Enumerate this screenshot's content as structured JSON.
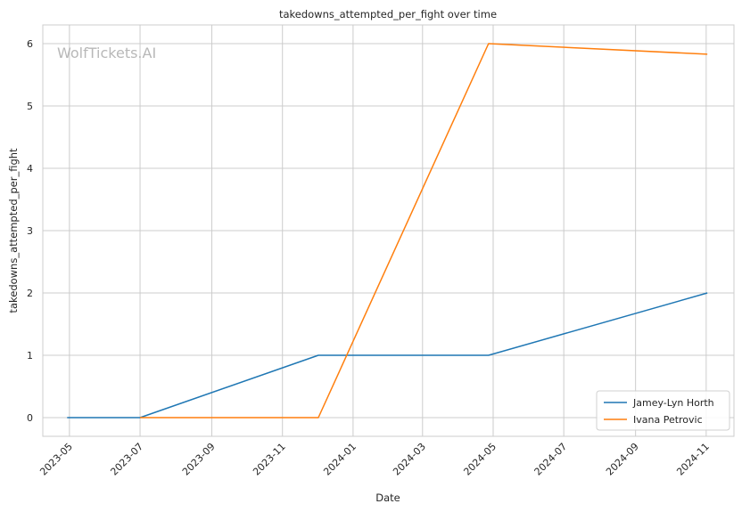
{
  "chart_data": {
    "type": "line",
    "title": "takedowns_attempted_per_fight over time",
    "xlabel": "Date",
    "ylabel": "takedowns_attempted_per_fight",
    "watermark": "WolfTickets.AI",
    "x_ticks": [
      "2023-05",
      "2023-07",
      "2023-09",
      "2023-11",
      "2024-01",
      "2024-03",
      "2024-05",
      "2024-07",
      "2024-09",
      "2024-11"
    ],
    "y_ticks": [
      "0",
      "1",
      "2",
      "3",
      "4",
      "5",
      "6"
    ],
    "xlim": [
      "2023-04-08",
      "2024-11-25"
    ],
    "ylim": [
      -0.3,
      6.3
    ],
    "grid": true,
    "legend_position": "bottom-right",
    "series": [
      {
        "name": "Jamey-Lyn Horth",
        "color": "#1f77b4",
        "x": [
          "2023-04-29",
          "2023-07-01",
          "2023-12-02",
          "2024-04-27",
          "2024-11-02"
        ],
        "y": [
          0,
          0,
          1,
          1,
          2
        ]
      },
      {
        "name": "Ivana Petrovic",
        "color": "#ff7f0e",
        "x": [
          "2023-07-01",
          "2023-12-02",
          "2024-04-27",
          "2024-11-02"
        ],
        "y": [
          0,
          0,
          6,
          5.83
        ]
      }
    ]
  }
}
